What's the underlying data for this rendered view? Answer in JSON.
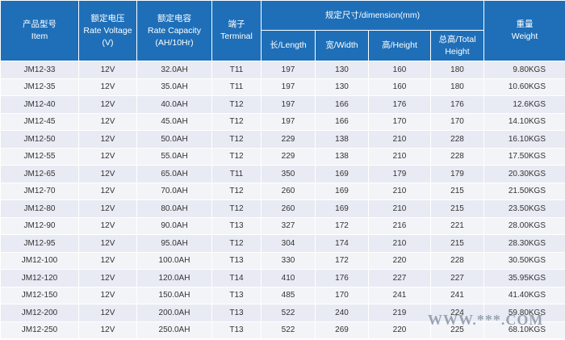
{
  "header": {
    "item": [
      "产品型号",
      "Item"
    ],
    "voltage": [
      "额定电压",
      "Rate Voltage",
      "(V)"
    ],
    "capacity": [
      "额定电容",
      "Rate Capacity",
      "(AH/10Hr)"
    ],
    "terminal": [
      "端子",
      "Terminal"
    ],
    "dimension": "规定尺寸/dimension(mm)",
    "length": "长/Length",
    "width": "宽/Width",
    "height": "高/Height",
    "total_height": [
      "总高/Total",
      "Height"
    ],
    "weight": [
      "重量",
      "Weight"
    ]
  },
  "rows": [
    [
      "JM12-33",
      "12V",
      "32.0AH",
      "T11",
      "197",
      "130",
      "160",
      "180",
      "9.80KGS"
    ],
    [
      "JM12-35",
      "12V",
      "35.0AH",
      "T11",
      "197",
      "130",
      "160",
      "180",
      "10.60KGS"
    ],
    [
      "JM12-40",
      "12V",
      "40.0AH",
      "T12",
      "197",
      "166",
      "176",
      "176",
      "12.6KGS"
    ],
    [
      "JM12-45",
      "12V",
      "45.0AH",
      "T12",
      "197",
      "166",
      "170",
      "170",
      "14.10KGS"
    ],
    [
      "JM12-50",
      "12V",
      "50.0AH",
      "T12",
      "229",
      "138",
      "210",
      "228",
      "16.10KGS"
    ],
    [
      "JM12-55",
      "12V",
      "55.0AH",
      "T12",
      "229",
      "138",
      "210",
      "228",
      "17.50KGS"
    ],
    [
      "JM12-65",
      "12V",
      "65.0AH",
      "T11",
      "350",
      "169",
      "179",
      "179",
      "20.30KGS"
    ],
    [
      "JM12-70",
      "12V",
      "70.0AH",
      "T12",
      "260",
      "169",
      "210",
      "215",
      "21.50KGS"
    ],
    [
      "JM12-80",
      "12V",
      "80.0AH",
      "T12",
      "260",
      "169",
      "210",
      "215",
      "23.50KGS"
    ],
    [
      "JM12-90",
      "12V",
      "90.0AH",
      "T13",
      "327",
      "172",
      "216",
      "221",
      "28.00KGS"
    ],
    [
      "JM12-95",
      "12V",
      "95.0AH",
      "T12",
      "304",
      "174",
      "210",
      "215",
      "28.30KGS"
    ],
    [
      "JM12-100",
      "12V",
      "100.0AH",
      "T13",
      "330",
      "172",
      "220",
      "228",
      "30.50KGS"
    ],
    [
      "JM12-120",
      "12V",
      "120.0AH",
      "T14",
      "410",
      "176",
      "227",
      "227",
      "35.95KGS"
    ],
    [
      "JM12-150",
      "12V",
      "150.0AH",
      "T13",
      "485",
      "170",
      "241",
      "241",
      "41.40KGS"
    ],
    [
      "JM12-200",
      "12V",
      "200.0AH",
      "T13",
      "522",
      "240",
      "219",
      "224",
      "59.80KGS"
    ],
    [
      "JM12-250",
      "12V",
      "250.0AH",
      "T13",
      "522",
      "269",
      "220",
      "225",
      "68.10KGS"
    ]
  ],
  "watermark": "WWW.***.COM",
  "colors": {
    "header_bg": "#1e6fb8",
    "row_odd": "#e8ebf3",
    "row_even": "#f3f4f8"
  }
}
